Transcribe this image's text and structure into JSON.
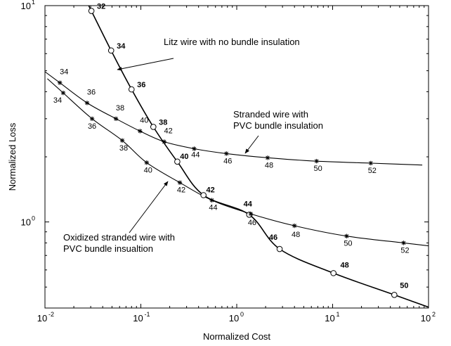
{
  "chart_data": {
    "type": "line",
    "xlabel": "Normalized Cost",
    "ylabel": "Normalized Loss",
    "x_scale": "log",
    "y_scale": "log",
    "xlim": [
      0.01,
      100
    ],
    "ylim": [
      0.4,
      10
    ],
    "x_ticks": [
      {
        "value": 0.01,
        "base": "10",
        "exp": "-2"
      },
      {
        "value": 0.1,
        "base": "10",
        "exp": "-1"
      },
      {
        "value": 1,
        "base": "10",
        "exp": "0"
      },
      {
        "value": 10,
        "base": "10",
        "exp": "1"
      },
      {
        "value": 100,
        "base": "10",
        "exp": "2"
      }
    ],
    "y_ticks": [
      {
        "value": 1,
        "base": "10",
        "exp": "0"
      },
      {
        "value": 10,
        "base": "10",
        "exp": "1"
      }
    ],
    "grid": false,
    "legend": "none",
    "series": [
      {
        "key": "litz",
        "marker": "circle",
        "label_style": "bold",
        "points": [
          {
            "x": 0.0305,
            "y": 9.45,
            "label": "32"
          },
          {
            "x": 0.049,
            "y": 6.2,
            "label": "34"
          },
          {
            "x": 0.08,
            "y": 4.1,
            "label": "36"
          },
          {
            "x": 0.135,
            "y": 2.75,
            "label": "38"
          },
          {
            "x": 0.24,
            "y": 1.9,
            "label": "40"
          },
          {
            "x": 0.45,
            "y": 1.33,
            "label": "42"
          },
          {
            "x": 1.35,
            "y": 1.08,
            "label": "44"
          },
          {
            "x": 2.8,
            "y": 0.75,
            "label": "46"
          },
          {
            "x": 10.2,
            "y": 0.58,
            "label": "48"
          },
          {
            "x": 44,
            "y": 0.46,
            "label": "50"
          }
        ]
      },
      {
        "key": "stranded_pvc",
        "marker": "asterisk",
        "label_style": "normal",
        "points": [
          {
            "x": 0.0143,
            "y": 4.4,
            "label": "34"
          },
          {
            "x": 0.0275,
            "y": 3.55,
            "label": "36"
          },
          {
            "x": 0.055,
            "y": 3.0,
            "label": "38"
          },
          {
            "x": 0.098,
            "y": 2.63,
            "label": "40"
          },
          {
            "x": 0.175,
            "y": 2.35,
            "label": "42"
          },
          {
            "x": 0.36,
            "y": 2.18,
            "label": "44"
          },
          {
            "x": 0.78,
            "y": 2.07,
            "label": "46"
          },
          {
            "x": 2.1,
            "y": 1.98,
            "label": "48"
          },
          {
            "x": 6.8,
            "y": 1.91,
            "label": "50"
          },
          {
            "x": 25,
            "y": 1.87,
            "label": "52"
          }
        ]
      },
      {
        "key": "oxidized_pvc",
        "marker": "asterisk",
        "label_style": "normal",
        "points": [
          {
            "x": 0.0155,
            "y": 3.95,
            "label": "34"
          },
          {
            "x": 0.031,
            "y": 3.0,
            "label": "36"
          },
          {
            "x": 0.064,
            "y": 2.38,
            "label": "38"
          },
          {
            "x": 0.115,
            "y": 1.88,
            "label": "40"
          },
          {
            "x": 0.255,
            "y": 1.52,
            "label": "42"
          },
          {
            "x": 0.55,
            "y": 1.26,
            "label": "44"
          },
          {
            "x": 1.4,
            "y": 1.09,
            "label": "46"
          },
          {
            "x": 4.0,
            "y": 0.96,
            "label": "48"
          },
          {
            "x": 14,
            "y": 0.86,
            "label": "50"
          },
          {
            "x": 55,
            "y": 0.8,
            "label": "52"
          }
        ]
      }
    ],
    "annotations": [
      {
        "key": "litz",
        "lines": [
          "Litz wire with no bundle insulation"
        ]
      },
      {
        "key": "stranded_pvc",
        "lines": [
          "Stranded wire with",
          "PVC bundle insulation"
        ]
      },
      {
        "key": "oxidized_pvc",
        "lines": [
          "Oxidized stranded wire with",
          "PVC bundle insualtion"
        ]
      }
    ]
  }
}
